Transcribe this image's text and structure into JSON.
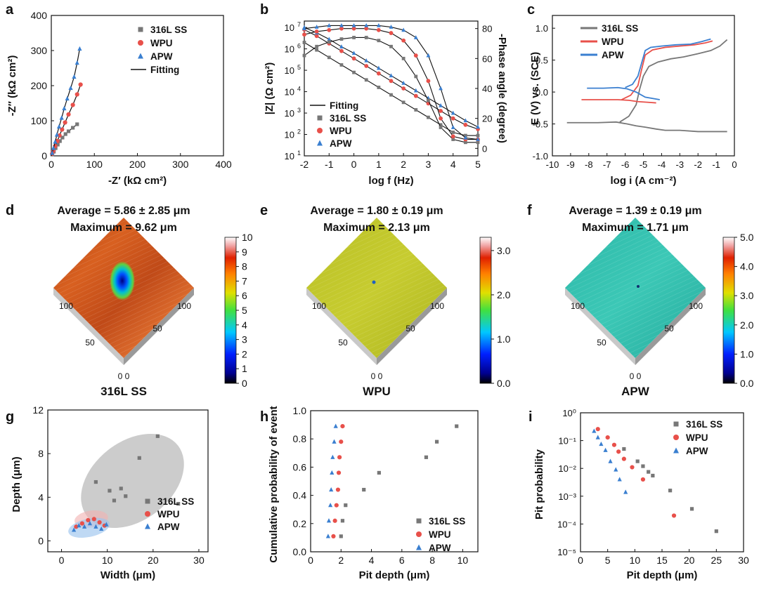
{
  "colors": {
    "ss": "#777777",
    "wpu": "#e8504a",
    "apw": "#3a7fd0",
    "fit": "#111111"
  },
  "panel_labels": [
    "a",
    "b",
    "c",
    "d",
    "e",
    "f",
    "g",
    "h",
    "i"
  ],
  "chart_data": [
    {
      "id": "a",
      "type": "scatter",
      "xlabel": "-Z′ (kΩ cm²)",
      "ylabel": "-Z″ (kΩ cm²)",
      "xlim": [
        0,
        400
      ],
      "ylim": [
        0,
        400
      ],
      "xticks": [
        0,
        100,
        200,
        300,
        400
      ],
      "yticks": [
        0,
        100,
        200,
        300,
        400
      ],
      "legend": {
        "position": "top-right",
        "entries": [
          "316L SS",
          "WPU",
          "APW",
          "Fitting"
        ]
      },
      "series": [
        {
          "name": "316L SS",
          "color_key": "ss",
          "marker": "square",
          "x": [
            2,
            6,
            10,
            15,
            20,
            26,
            33,
            40,
            50,
            60
          ],
          "y": [
            4,
            12,
            22,
            32,
            42,
            52,
            62,
            70,
            80,
            90
          ]
        },
        {
          "name": "WPU",
          "color_key": "wpu",
          "marker": "circle",
          "x": [
            2,
            5,
            9,
            14,
            19,
            25,
            32,
            40,
            50,
            60,
            68
          ],
          "y": [
            6,
            15,
            28,
            42,
            58,
            75,
            95,
            118,
            145,
            175,
            203
          ]
        },
        {
          "name": "APW",
          "color_key": "apw",
          "marker": "triangle",
          "x": [
            2,
            5,
            9,
            13,
            18,
            24,
            30,
            37,
            45,
            53,
            60,
            66
          ],
          "y": [
            8,
            22,
            40,
            60,
            83,
            108,
            135,
            163,
            193,
            225,
            265,
            305
          ]
        }
      ]
    },
    {
      "id": "b",
      "type": "line",
      "xlabel": "log f (Hz)",
      "ylabel": "|Z| (Ω cm²)",
      "y2label": "-Phase angle (degree)",
      "xlim": [
        -2,
        5
      ],
      "ylim_log10": [
        1,
        7.3
      ],
      "y2lim": [
        -5,
        85
      ],
      "xticks": [
        -2,
        -1,
        0,
        1,
        2,
        3,
        4,
        5
      ],
      "yticks_log10": [
        1,
        2,
        3,
        4,
        5,
        6,
        7
      ],
      "y2ticks": [
        0,
        20,
        40,
        60,
        80
      ],
      "legend": {
        "position": "bottom-left",
        "entries": [
          "Fitting",
          "316L SS",
          "WPU",
          "APW"
        ]
      },
      "modulus_series": [
        {
          "name": "316L SS",
          "color_key": "ss",
          "marker": "square",
          "x": [
            -2,
            -1.5,
            -1,
            -0.5,
            0,
            0.5,
            1,
            1.5,
            2,
            2.5,
            3,
            3.5,
            4,
            4.5,
            5
          ],
          "log10y": [
            6.3,
            5.95,
            5.6,
            5.25,
            4.9,
            4.55,
            4.2,
            3.85,
            3.5,
            3.15,
            2.8,
            2.45,
            2.1,
            1.95,
            1.95
          ]
        },
        {
          "name": "WPU",
          "color_key": "wpu",
          "marker": "circle",
          "x": [
            -2,
            -1.5,
            -1,
            -0.5,
            0,
            0.5,
            1,
            1.5,
            2,
            2.5,
            3,
            3.5,
            4,
            4.5,
            5
          ],
          "log10y": [
            6.9,
            6.6,
            6.25,
            5.9,
            5.55,
            5.2,
            4.85,
            4.5,
            4.15,
            3.8,
            3.45,
            3.1,
            2.75,
            2.45,
            2.25
          ]
        },
        {
          "name": "APW",
          "color_key": "apw",
          "marker": "triangle",
          "x": [
            -2,
            -1.5,
            -1,
            -0.5,
            0,
            0.5,
            1,
            1.5,
            2,
            2.5,
            3,
            3.5,
            4,
            4.5,
            5
          ],
          "log10y": [
            7.0,
            6.75,
            6.45,
            6.1,
            5.8,
            5.45,
            5.1,
            4.75,
            4.4,
            4.05,
            3.7,
            3.35,
            3.0,
            2.65,
            2.35
          ]
        }
      ],
      "phase_series": [
        {
          "name": "316L SS",
          "color_key": "ss",
          "marker": "square",
          "x": [
            -2,
            -1.5,
            -1,
            -0.5,
            0,
            0.5,
            1,
            1.5,
            2,
            2.5,
            3,
            3.5,
            4,
            4.5,
            5
          ],
          "y": [
            62,
            68,
            71,
            73,
            74,
            74,
            72,
            68,
            60,
            48,
            32,
            14,
            6,
            4,
            4
          ]
        },
        {
          "name": "WPU",
          "color_key": "wpu",
          "marker": "circle",
          "x": [
            -2,
            -1.5,
            -1,
            -0.5,
            0,
            0.5,
            1,
            1.5,
            2,
            2.5,
            3,
            3.5,
            4,
            4.5,
            5
          ],
          "y": [
            76,
            78,
            79,
            80,
            80,
            80,
            79,
            77,
            72,
            62,
            45,
            20,
            8,
            6,
            6
          ]
        },
        {
          "name": "APW",
          "color_key": "apw",
          "marker": "triangle",
          "x": [
            -2,
            -1.5,
            -1,
            -0.5,
            0,
            0.5,
            1,
            1.5,
            2,
            2.5,
            3,
            3.5,
            4,
            4.5,
            5
          ],
          "y": [
            80,
            81,
            82,
            82,
            82,
            82,
            82,
            81,
            79,
            74,
            62,
            40,
            14,
            7,
            6
          ]
        }
      ]
    },
    {
      "id": "c",
      "type": "line",
      "xlabel": "log i (A cm⁻²)",
      "ylabel": "E (V) vs. (SCE)",
      "xlim": [
        -10,
        0
      ],
      "ylim": [
        -1.0,
        1.2
      ],
      "xticks": [
        -10,
        -9,
        -8,
        -7,
        -6,
        -5,
        -4,
        -3,
        -2,
        -1,
        0
      ],
      "yticks": [
        -1.0,
        -0.5,
        0.0,
        0.5,
        1.0
      ],
      "legend": {
        "position": "top-left",
        "entries": [
          "316L SS",
          "WPU",
          "APW"
        ]
      },
      "series": [
        {
          "name": "316L SS",
          "color_key": "ss",
          "x": [
            -9.2,
            -7.5,
            -6.5,
            -5.9,
            -5.4,
            -4.9,
            -4.3,
            -3.8,
            -3.0,
            -2.0,
            -1.2,
            -0.7,
            -0.4
          ],
          "y": [
            -0.48,
            -0.48,
            -0.47,
            -0.5,
            -0.53,
            -0.55,
            -0.58,
            -0.6,
            -0.6,
            -0.62,
            -0.62,
            -0.62,
            -0.62
          ],
          "x2": [
            -6.3,
            -5.8,
            -5.4,
            -5.2,
            -5.0,
            -4.7,
            -4.2,
            -3.5,
            -2.8,
            -2.0,
            -1.3,
            -0.8,
            -0.4
          ],
          "y2": [
            -0.47,
            -0.38,
            -0.2,
            0.05,
            0.25,
            0.4,
            0.47,
            0.52,
            0.55,
            0.6,
            0.65,
            0.72,
            0.82
          ]
        },
        {
          "name": "WPU",
          "color_key": "wpu",
          "x": [
            -8.4,
            -7.2,
            -6.4,
            -5.8,
            -5.3,
            -4.8,
            -4.3
          ],
          "y": [
            -0.12,
            -0.12,
            -0.12,
            -0.13,
            -0.15,
            -0.16,
            -0.17
          ],
          "x2": [
            -6.2,
            -5.7,
            -5.3,
            -5.1,
            -4.9,
            -4.5,
            -3.8,
            -3.0,
            -2.2,
            -1.6,
            -1.2
          ],
          "y2": [
            -0.12,
            -0.05,
            0.1,
            0.35,
            0.58,
            0.66,
            0.7,
            0.72,
            0.74,
            0.77,
            0.8
          ]
        },
        {
          "name": "APW",
          "color_key": "apw",
          "x": [
            -8.1,
            -7.2,
            -6.4,
            -5.9,
            -5.4,
            -4.9,
            -4.1
          ],
          "y": [
            0.06,
            0.06,
            0.07,
            0.05,
            0.0,
            -0.08,
            -0.12
          ],
          "x2": [
            -6.0,
            -5.6,
            -5.3,
            -5.1,
            -4.9,
            -4.6,
            -4.0,
            -3.2,
            -2.4,
            -1.8,
            -1.3
          ],
          "y2": [
            0.07,
            0.12,
            0.25,
            0.45,
            0.65,
            0.7,
            0.72,
            0.74,
            0.75,
            0.79,
            0.83
          ]
        }
      ]
    },
    {
      "id": "d",
      "type": "heatmap",
      "title": [
        "Average = 5.86 ± 2.85 μm",
        "Maximum = 9.62 μm"
      ],
      "sample_label": "316L SS",
      "colorbar": {
        "min": 0,
        "max": 10,
        "ticks": [
          0,
          1,
          2,
          3,
          4,
          5,
          6,
          7,
          8,
          9,
          10
        ]
      },
      "axis_ticks": [
        "100",
        "50",
        "0 0",
        "50",
        "100"
      ]
    },
    {
      "id": "e",
      "type": "heatmap",
      "title": [
        "Average = 1.80 ± 0.19 μm",
        "Maximum = 2.13 μm"
      ],
      "sample_label": "WPU",
      "colorbar": {
        "min": 0,
        "max": 3.3,
        "ticks": [
          "0.0",
          "1.0",
          "2.0",
          "3.0"
        ]
      },
      "axis_ticks": [
        "100",
        "50",
        "0 0",
        "50",
        "100"
      ]
    },
    {
      "id": "f",
      "type": "heatmap",
      "title": [
        "Average = 1.39 ± 0.19 μm",
        "Maximum = 1.71 μm"
      ],
      "sample_label": "APW",
      "colorbar": {
        "min": 0,
        "max": 5.0,
        "ticks": [
          "0.0",
          "1.0",
          "2.0",
          "3.0",
          "4.0",
          "5.0"
        ]
      },
      "axis_ticks": [
        "100",
        "50",
        "0 0",
        "50",
        "100"
      ]
    },
    {
      "id": "g",
      "type": "scatter",
      "xlabel": "Width (μm)",
      "ylabel": "Depth (μm)",
      "xlim": [
        -3,
        32
      ],
      "ylim": [
        -1,
        12
      ],
      "xticks": [
        0,
        10,
        20,
        30
      ],
      "yticks": [
        0,
        4,
        8,
        12
      ],
      "legend": {
        "position": "bottom-right",
        "entries": [
          "316L SS",
          "WPU",
          "APW"
        ]
      },
      "series": [
        {
          "name": "316L SS",
          "color_key": "ss",
          "marker": "square",
          "x": [
            21,
            17,
            7.5,
            13,
            10.5,
            14,
            11.5,
            25.5
          ],
          "y": [
            9.6,
            7.6,
            5.4,
            4.8,
            4.6,
            4.1,
            3.7,
            3.4
          ]
        },
        {
          "name": "WPU",
          "color_key": "wpu",
          "marker": "circle",
          "x": [
            3.2,
            4.5,
            5.8,
            7.1,
            8.3,
            9.4
          ],
          "y": [
            1.3,
            1.6,
            1.9,
            2.0,
            1.7,
            1.4
          ]
        },
        {
          "name": "APW",
          "color_key": "apw",
          "marker": "triangle",
          "x": [
            2.7,
            3.8,
            5.0,
            6.2,
            7.5,
            8.7,
            9.8
          ],
          "y": [
            1.0,
            1.4,
            1.3,
            1.6,
            1.3,
            1.1,
            1.5
          ]
        }
      ]
    },
    {
      "id": "h",
      "type": "scatter",
      "xlabel": "Pit depth (μm)",
      "ylabel": "Cumulative  probability of event",
      "xlim": [
        0,
        11
      ],
      "ylim": [
        0,
        1.0
      ],
      "xticks": [
        0,
        2,
        4,
        6,
        8,
        10
      ],
      "yticks": [
        0.0,
        0.2,
        0.4,
        0.6,
        0.8,
        1.0
      ],
      "legend": {
        "position": "bottom-right",
        "entries": [
          "316L SS",
          "WPU",
          "APW"
        ]
      },
      "series": [
        {
          "name": "316L SS",
          "color_key": "ss",
          "marker": "square",
          "x": [
            2.0,
            2.1,
            2.3,
            3.5,
            4.5,
            7.6,
            8.3,
            9.6
          ],
          "y": [
            0.11,
            0.22,
            0.33,
            0.44,
            0.56,
            0.67,
            0.78,
            0.89
          ]
        },
        {
          "name": "WPU",
          "color_key": "wpu",
          "marker": "circle",
          "x": [
            1.5,
            1.6,
            1.7,
            1.8,
            1.85,
            1.9,
            2.0,
            2.1
          ],
          "y": [
            0.11,
            0.22,
            0.33,
            0.44,
            0.56,
            0.67,
            0.78,
            0.89
          ]
        },
        {
          "name": "APW",
          "color_key": "apw",
          "marker": "triangle",
          "x": [
            1.15,
            1.2,
            1.3,
            1.35,
            1.4,
            1.45,
            1.55,
            1.65
          ],
          "y": [
            0.11,
            0.22,
            0.33,
            0.44,
            0.56,
            0.67,
            0.78,
            0.89
          ]
        }
      ]
    },
    {
      "id": "i",
      "type": "scatter",
      "xlabel": "Pit depth (μm)",
      "ylabel": "Pit probability",
      "xlim": [
        0,
        30
      ],
      "ylim_log10": [
        -5,
        0
      ],
      "xticks": [
        0,
        5,
        10,
        15,
        20,
        25,
        30
      ],
      "yticks_log10": [
        0,
        -1,
        -2,
        -3,
        -4,
        -5
      ],
      "ytick_labels": [
        "10⁰",
        "10⁻¹",
        "10⁻²",
        "10⁻³",
        "10⁻⁴",
        "10⁻⁵"
      ],
      "legend": {
        "position": "top-right",
        "entries": [
          "316L SS",
          "WPU",
          "APW"
        ]
      },
      "series": [
        {
          "name": "316L SS",
          "color_key": "ss",
          "marker": "square",
          "x": [
            8.0,
            10.5,
            11.5,
            12.5,
            13.3,
            16.5,
            20.5,
            25.0
          ],
          "y": [
            0.05,
            0.018,
            0.012,
            0.0075,
            0.0055,
            0.0016,
            0.00035,
            5.5e-05
          ]
        },
        {
          "name": "WPU",
          "color_key": "wpu",
          "marker": "circle",
          "x": [
            3.2,
            5.0,
            6.2,
            7.0,
            8.0,
            9.5,
            11.5,
            17.2
          ],
          "y": [
            0.26,
            0.13,
            0.07,
            0.04,
            0.022,
            0.011,
            0.004,
            0.0002
          ]
        },
        {
          "name": "APW",
          "color_key": "apw",
          "marker": "triangle",
          "x": [
            2.5,
            3.2,
            3.8,
            4.6,
            5.5,
            6.5,
            7.2,
            8.3
          ],
          "y": [
            0.22,
            0.13,
            0.075,
            0.045,
            0.018,
            0.009,
            0.004,
            0.0014
          ]
        }
      ]
    }
  ]
}
